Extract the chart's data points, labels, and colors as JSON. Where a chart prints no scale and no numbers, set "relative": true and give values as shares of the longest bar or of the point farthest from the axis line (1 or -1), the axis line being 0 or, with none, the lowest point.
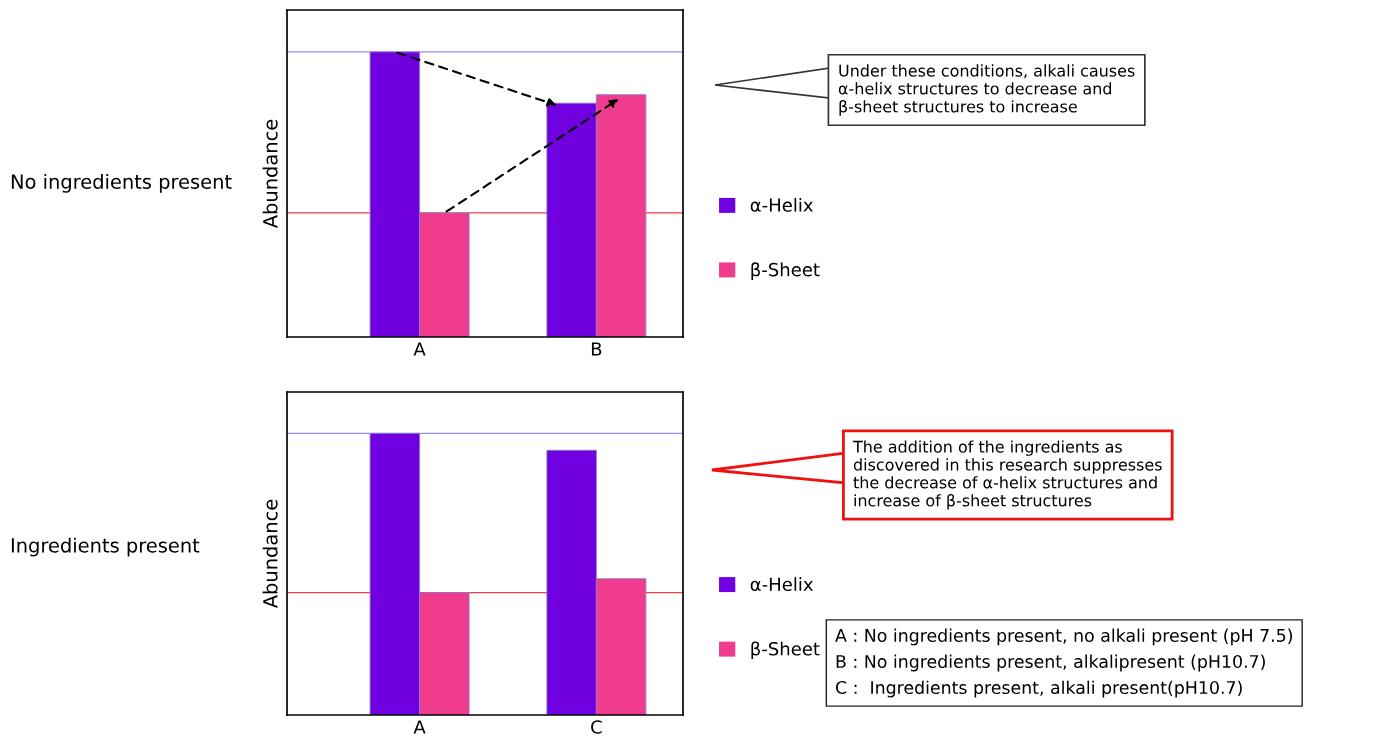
{
  "chart_data": [
    {
      "type": "bar",
      "relative": true,
      "ylabel": "Abundance",
      "categories": [
        "A",
        "B"
      ],
      "legend": "right",
      "series": [
        {
          "name": "α-Helix",
          "color": "#7000e0",
          "values": [
            1,
            0.82
          ]
        },
        {
          "name": "β-Sheet",
          "color": "#f03c8c",
          "values": [
            0.435,
            0.85
          ]
        }
      ],
      "ref_lines": [
        {
          "axis": "y",
          "value": 1,
          "color": "#a08cf0"
        },
        {
          "axis": "y",
          "value": 0.435,
          "color": "#f04040"
        }
      ],
      "annotations": [
        "No ingredients present",
        "Under these conditions, alkali causes α-helix structures to decrease and β-sheet structures to increase"
      ]
    },
    {
      "type": "bar",
      "relative": true,
      "ylabel": "Abundance",
      "categories": [
        "A",
        "C"
      ],
      "legend": "right",
      "series": [
        {
          "name": "α-Helix",
          "color": "#7000e0",
          "values": [
            1,
            0.94
          ]
        },
        {
          "name": "β-Sheet",
          "color": "#f03c8c",
          "values": [
            0.435,
            0.484
          ]
        }
      ],
      "ref_lines": [
        {
          "axis": "y",
          "value": 1,
          "color": "#a08cf0"
        },
        {
          "axis": "y",
          "value": 0.435,
          "color": "#f04040"
        }
      ],
      "annotations": [
        "Ingredients present",
        "The addition of the ingredients as discovered in this research suppresses the decrease of α-helix structures and increase of β-sheet structures",
        "A : No ingredients present, no alkali present (pH 7.5)\nB : No ingredients present, alkalipresent (pH10.7)\nC :  Ingredients present, alkali present(pH10.7)"
      ]
    }
  ]
}
